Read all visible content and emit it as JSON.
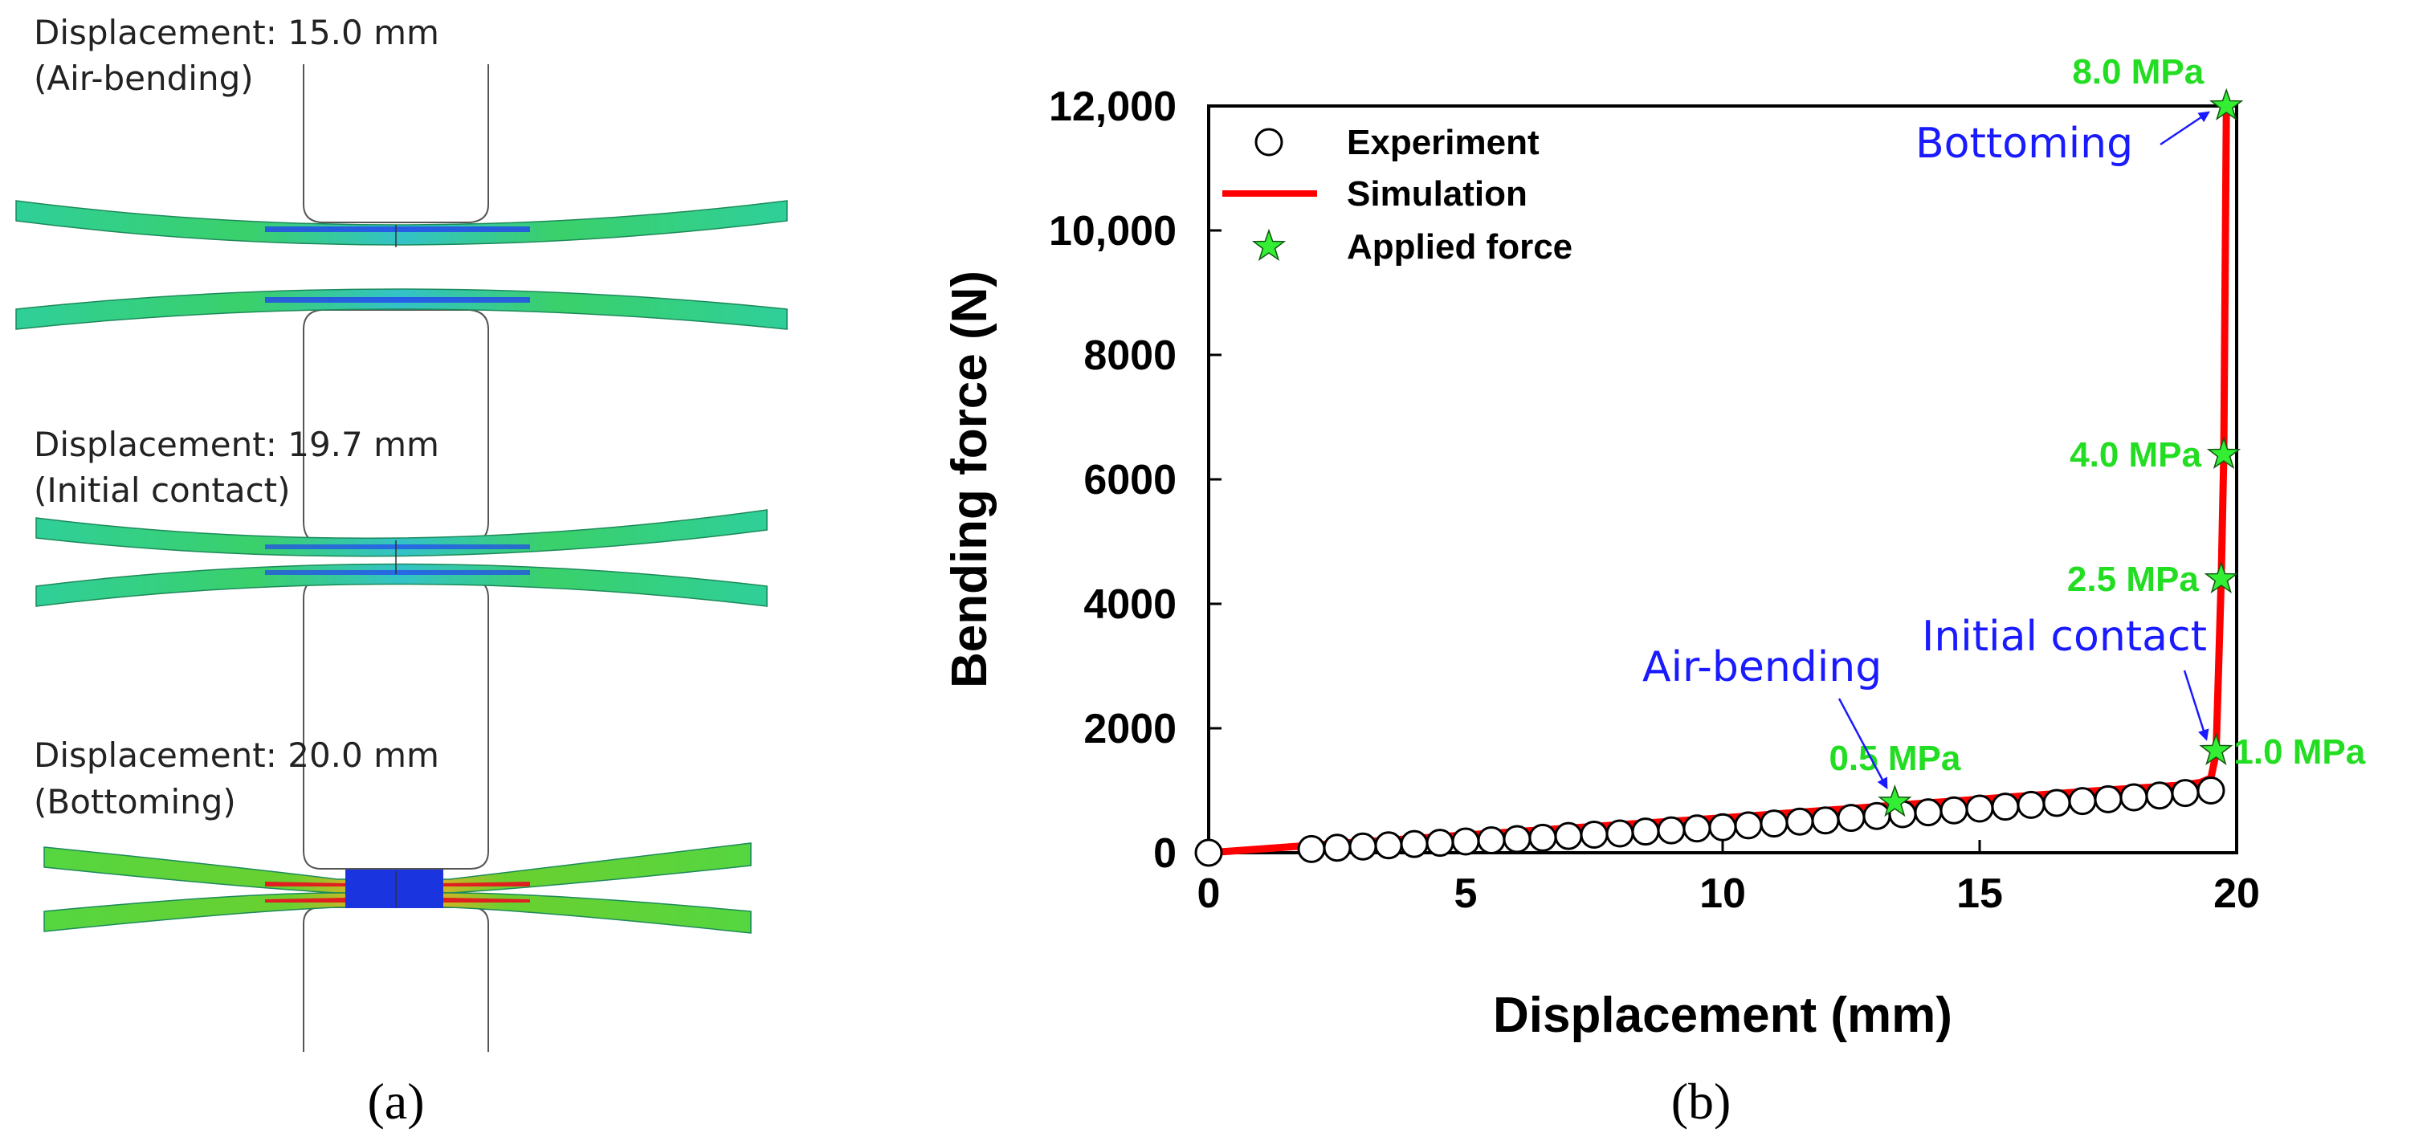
{
  "panel_a": {
    "stages": [
      {
        "displacement_label": "Displacement: 15.0 mm",
        "state_label": "(Air-bending)"
      },
      {
        "displacement_label": "Displacement: 19.7 mm",
        "state_label": "(Initial contact)"
      },
      {
        "displacement_label": "Displacement: 20.0 mm",
        "state_label": "(Bottoming)"
      }
    ],
    "caption": "(a)"
  },
  "panel_b": {
    "caption": "(b)"
  },
  "colors": {
    "experiment_marker": "#000000",
    "simulation_line": "#ff0000",
    "applied_force_marker": "#33ee33",
    "pressure_label": "#22dd22",
    "annotation_blue": "#1a1aff",
    "plate_green": "#33cc44",
    "plate_cyan": "#22ccbb",
    "plate_blue": "#2244ee"
  },
  "chart_data": {
    "type": "scatter",
    "title": "",
    "xlabel": "Displacement (mm)",
    "ylabel": "Bending force (N)",
    "xlim": [
      0,
      20
    ],
    "ylim": [
      0,
      12000
    ],
    "x_ticks": [
      0,
      5,
      10,
      15,
      20
    ],
    "x_tick_labels": [
      "0",
      "5",
      "10",
      "15",
      "20"
    ],
    "y_ticks": [
      0,
      2000,
      4000,
      6000,
      8000,
      10000,
      12000
    ],
    "y_tick_labels": [
      "0",
      "2000",
      "4000",
      "6000",
      "8000",
      "10,000",
      "12,000"
    ],
    "legend": {
      "position": "top-left",
      "entries": [
        "Experiment",
        "Simulation",
        "Applied force"
      ]
    },
    "series": [
      {
        "name": "Experiment",
        "kind": "open-circle",
        "x": [
          0,
          2,
          2.5,
          3,
          3.5,
          4,
          4.5,
          5,
          5.5,
          6,
          6.5,
          7,
          7.5,
          8,
          8.5,
          9,
          9.5,
          10,
          10.5,
          11,
          11.5,
          12,
          12.5,
          13,
          13.5,
          14,
          14.5,
          15,
          15.5,
          16,
          16.5,
          17,
          17.5,
          18,
          18.5,
          19,
          19.5
        ],
        "y": [
          0,
          60,
          80,
          100,
          120,
          140,
          160,
          180,
          200,
          220,
          240,
          270,
          290,
          310,
          340,
          360,
          390,
          410,
          440,
          470,
          500,
          520,
          560,
          590,
          620,
          650,
          680,
          710,
          740,
          770,
          800,
          830,
          860,
          890,
          920,
          960,
          1000
        ]
      },
      {
        "name": "Simulation",
        "kind": "line",
        "x": [
          0,
          2,
          4,
          6,
          8,
          10,
          12,
          13.3,
          15,
          17,
          19,
          19.3,
          19.5,
          19.6,
          19.7,
          19.75,
          19.8
        ],
        "y": [
          0,
          120,
          230,
          340,
          450,
          560,
          680,
          760,
          860,
          980,
          1090,
          1130,
          1200,
          1600,
          4400,
          6400,
          11900
        ]
      },
      {
        "name": "Applied force",
        "kind": "star",
        "x": [
          13.35,
          19.6,
          19.7,
          19.75,
          19.8
        ],
        "y": [
          810,
          1640,
          4400,
          6400,
          12000
        ],
        "labels": [
          "0.5 MPa",
          "1.0 MPa",
          "2.5 MPa",
          "4.0 MPa",
          "8.0 MPa"
        ]
      }
    ],
    "annotations": [
      {
        "text": "Air-bending",
        "points_to_x": 13.35,
        "points_to_y": 810
      },
      {
        "text": "Initial contact",
        "points_to_x": 19.6,
        "points_to_y": 1640
      },
      {
        "text": "Bottoming",
        "points_to_x": 19.8,
        "points_to_y": 11900
      }
    ]
  }
}
